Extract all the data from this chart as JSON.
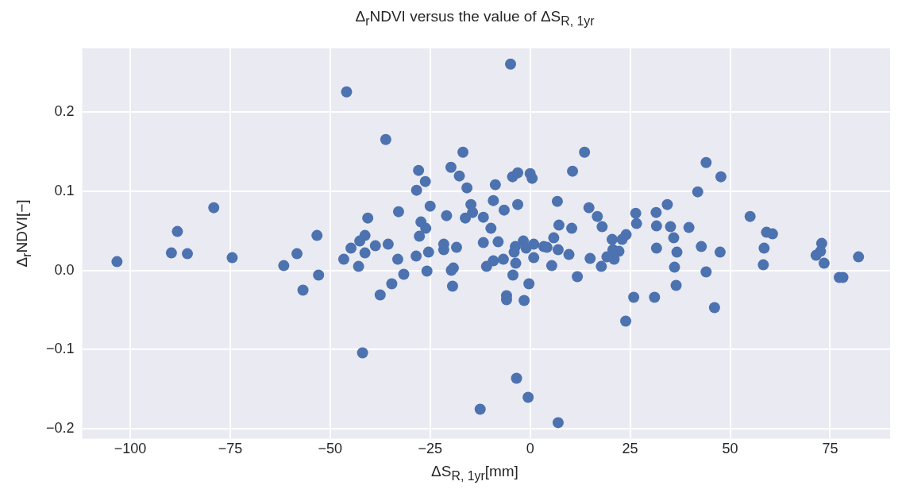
{
  "chart_data": {
    "type": "scatter",
    "title": "Δ$_{r}$NDVI versus the value of ΔS$_{R, 1yr}$",
    "xlabel": "ΔS$_{R, 1yr}$[mm]",
    "ylabel": "Δ$_{r}$NDVI[−]",
    "xlim": [
      -112,
      90
    ],
    "ylim": [
      -0.212,
      0.28
    ],
    "xticks": [
      {
        "value": -100,
        "label": "−100"
      },
      {
        "value": -75,
        "label": "−75"
      },
      {
        "value": -50,
        "label": "−50"
      },
      {
        "value": -25,
        "label": "−25"
      },
      0,
      25,
      50,
      75
    ],
    "yticks": [
      {
        "value": -0.2,
        "label": "−0.2"
      },
      {
        "value": -0.1,
        "label": "−0.1"
      },
      {
        "value": 0,
        "label": "0.0"
      },
      0.1,
      0.2
    ],
    "grid": true,
    "marker": "circle",
    "series": [
      {
        "color": "#4c72b0",
        "x": [
          -103.3,
          -45.9,
          -79.1,
          -88.2,
          -89.7,
          -85.7,
          -74.5,
          -61.6,
          -58.3,
          -53.3,
          -56.8,
          -52.9,
          -4.9,
          -36.1,
          -16.8,
          -27.9,
          -19.8,
          -17.7,
          -26.2,
          -28.4,
          -15.8,
          -8.7,
          -4.4,
          -3.1,
          0.0,
          0.5,
          -9.2,
          -3.1,
          -6.5,
          -14.8,
          -14.4,
          -16.2,
          -11.7,
          -9.8,
          -25.0,
          -20.9,
          -32.9,
          -40.6,
          -27.3,
          -26.1,
          -27.7,
          -41.3,
          -42.6,
          -44.8,
          -38.7,
          -35.5,
          -41.3,
          -46.6,
          -42.9,
          -33.1,
          -28.5,
          -25.4,
          -21.6,
          -21.6,
          -18.4,
          -25.8,
          -31.6,
          -34.6,
          -37.5,
          -19.2,
          -19.7,
          -19.4,
          -41.9,
          -11.7,
          -8.0,
          -10.9,
          -9.2,
          -6.7,
          -3.7,
          -1.7,
          -1.0,
          0.9,
          -4.0,
          -3.6,
          0.9,
          -4.3,
          -0.3,
          -5.9,
          -5.9,
          -1.5,
          -3.4,
          -0.5,
          -12.5,
          3.4,
          7.0,
          13.6,
          10.6,
          6.8,
          7.2,
          10.4,
          5.9,
          4.2,
          7.0,
          9.7,
          5.4,
          11.8,
          15.0,
          14.7,
          16.8,
          18.0,
          17.8,
          20.5,
          23.0,
          24.0,
          19.2,
          20.7,
          22.2,
          21.0,
          25.9,
          23.9,
          26.4,
          26.6,
          31.5,
          31.6,
          31.6,
          31.1,
          34.3,
          35.1,
          35.9,
          36.7,
          36.1,
          36.5,
          39.7,
          41.9,
          44.0,
          47.7,
          42.8,
          47.5,
          44.0,
          46.1,
          55.0,
          59.1,
          60.6,
          58.5,
          58.3,
          72.9,
          72.6,
          71.5,
          73.5,
          77.3,
          78.2,
          82.1
        ],
        "values": [
          0.011,
          0.225,
          0.079,
          0.049,
          0.022,
          0.021,
          0.016,
          0.006,
          0.021,
          0.044,
          -0.025,
          -0.006,
          0.26,
          0.165,
          0.149,
          0.126,
          0.13,
          0.119,
          0.112,
          0.101,
          0.104,
          0.108,
          0.118,
          0.123,
          0.122,
          0.116,
          0.088,
          0.083,
          0.076,
          0.083,
          0.073,
          0.066,
          0.067,
          0.053,
          0.081,
          0.069,
          0.074,
          0.066,
          0.061,
          0.053,
          0.043,
          0.044,
          0.037,
          0.028,
          0.031,
          0.033,
          0.022,
          0.014,
          0.005,
          0.014,
          0.018,
          0.023,
          0.033,
          0.026,
          0.029,
          -0.001,
          -0.005,
          -0.017,
          -0.031,
          0.003,
          0.0,
          -0.02,
          -0.104,
          0.035,
          0.036,
          0.005,
          0.012,
          0.014,
          0.03,
          0.037,
          0.028,
          0.033,
          0.023,
          0.009,
          0.016,
          -0.006,
          -0.017,
          -0.032,
          -0.037,
          -0.038,
          -0.136,
          -0.16,
          -0.175,
          0.03,
          -0.192,
          0.149,
          0.125,
          0.087,
          0.057,
          0.053,
          0.041,
          0.029,
          0.026,
          0.02,
          0.006,
          -0.008,
          0.015,
          0.079,
          0.068,
          0.055,
          0.005,
          0.039,
          0.039,
          0.045,
          0.017,
          0.026,
          0.024,
          0.014,
          -0.034,
          -0.064,
          0.072,
          0.059,
          0.073,
          0.056,
          0.028,
          -0.034,
          0.083,
          0.055,
          0.041,
          0.023,
          0.004,
          -0.019,
          0.054,
          0.099,
          0.136,
          0.118,
          0.03,
          0.023,
          -0.002,
          -0.047,
          0.068,
          0.048,
          0.046,
          0.028,
          0.007,
          0.034,
          0.024,
          0.019,
          0.009,
          -0.009,
          -0.009,
          0.017
        ]
      }
    ]
  }
}
